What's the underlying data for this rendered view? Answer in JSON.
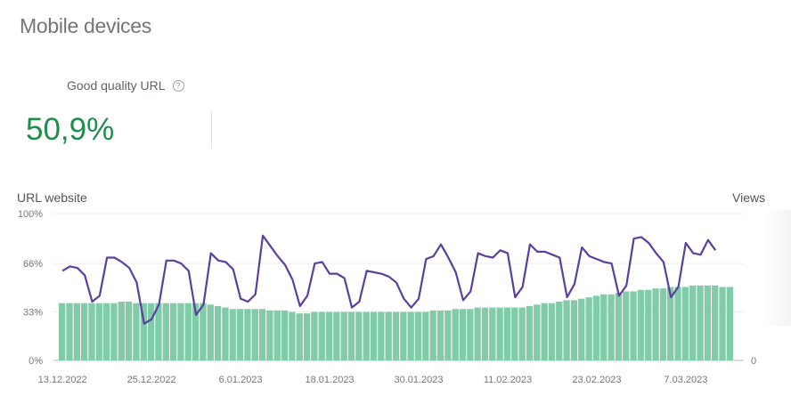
{
  "page": {
    "title": "Mobile devices",
    "metric_label": "Good quality URL",
    "help_icon": "?",
    "metric_value": "50,9%"
  },
  "colors": {
    "bar": "#82cba8",
    "line": "#5a3f9e",
    "metric": "#1e8e4e"
  },
  "chart_data": {
    "type": "bar+line",
    "left_axis_title": "URL website",
    "right_axis_title": "Views",
    "y_ticks": [
      "100%",
      "66%",
      "33%",
      "0%"
    ],
    "y_tick_values": [
      100,
      66,
      33,
      0
    ],
    "right_ticks": [
      "0"
    ],
    "ylim": [
      0,
      100
    ],
    "x_tick_labels": [
      "13.12.2022",
      "25.12.2022",
      "6.01.2023",
      "18.01.2023",
      "30.01.2023",
      "11.02.2023",
      "23.02.2023",
      "7.03.2023"
    ],
    "x_tick_day_index": [
      0,
      12,
      24,
      36,
      48,
      60,
      72,
      84
    ],
    "series": [
      {
        "name": "URL website (good quality %)",
        "type": "bar",
        "values": [
          39,
          39,
          39,
          39,
          39,
          39,
          39,
          39,
          40,
          40,
          39,
          39,
          39,
          39,
          39,
          39,
          39,
          39,
          39,
          39,
          38,
          37,
          36,
          35,
          35,
          35,
          35,
          35,
          34,
          34,
          34,
          33,
          32,
          32,
          33,
          33,
          33,
          33,
          33,
          33,
          33,
          33,
          33,
          33,
          33,
          33,
          33,
          33,
          33,
          33,
          34,
          34,
          34,
          35,
          35,
          35,
          36,
          36,
          36,
          36,
          36,
          36,
          36,
          37,
          38,
          39,
          39,
          40,
          41,
          41,
          42,
          43,
          44,
          45,
          45,
          46,
          47,
          47,
          48,
          48,
          49,
          49,
          50,
          50,
          50,
          51,
          51,
          51,
          51,
          50,
          50
        ]
      },
      {
        "name": "Views (relative)",
        "type": "line",
        "values": [
          61,
          64,
          63,
          58,
          40,
          44,
          70,
          70,
          67,
          63,
          53,
          25,
          28,
          38,
          68,
          68,
          66,
          61,
          31,
          38,
          73,
          68,
          67,
          62,
          42,
          40,
          45,
          85,
          78,
          71,
          65,
          55,
          37,
          44,
          66,
          67,
          59,
          59,
          56,
          36,
          40,
          61,
          60,
          59,
          57,
          53,
          42,
          36,
          42,
          69,
          71,
          79,
          70,
          60,
          41,
          47,
          73,
          71,
          70,
          75,
          73,
          43,
          50,
          79,
          74,
          74,
          72,
          70,
          43,
          52,
          77,
          71,
          69,
          67,
          66,
          44,
          51,
          83,
          84,
          80,
          73,
          67,
          43,
          50,
          80,
          73,
          72,
          82,
          75
        ]
      }
    ]
  }
}
